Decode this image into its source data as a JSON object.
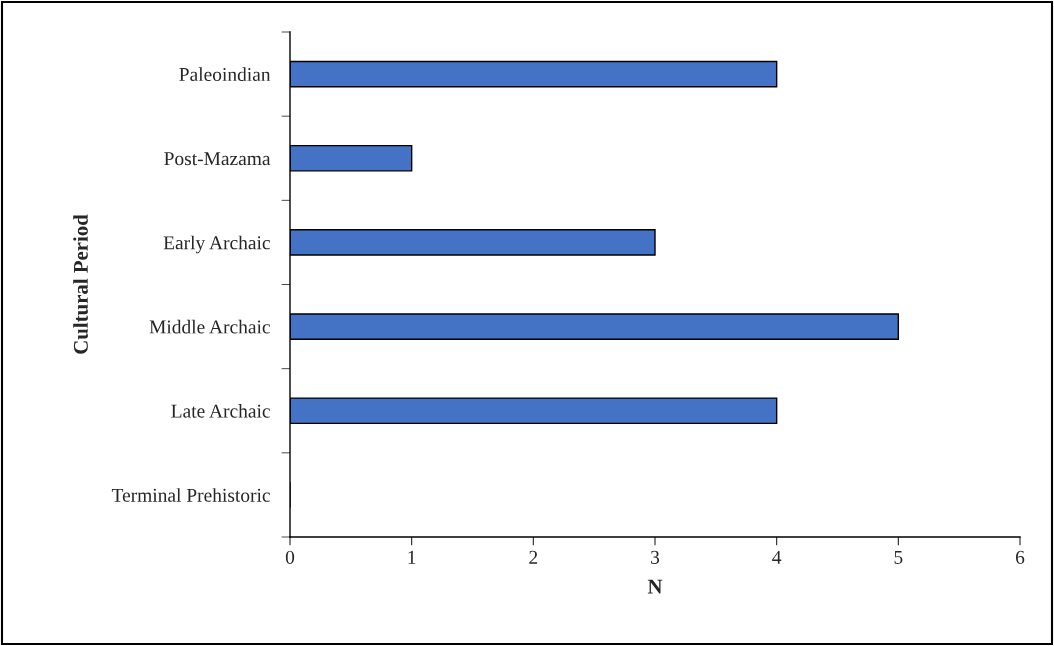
{
  "chart_data": {
    "type": "bar",
    "orientation": "horizontal",
    "xlabel": "N",
    "ylabel": "Cultural Period",
    "categories": [
      "Paleoindian",
      "Post-Mazama",
      "Early Archaic",
      "Middle Archaic",
      "Late Archaic",
      "Terminal Prehistoric"
    ],
    "values": [
      4,
      1,
      3,
      5,
      4,
      0
    ],
    "color": "#4472c4",
    "xlim": [
      0,
      6
    ],
    "xticks": [
      0,
      1,
      2,
      3,
      4,
      5,
      6
    ],
    "grid": false,
    "legend": false
  }
}
